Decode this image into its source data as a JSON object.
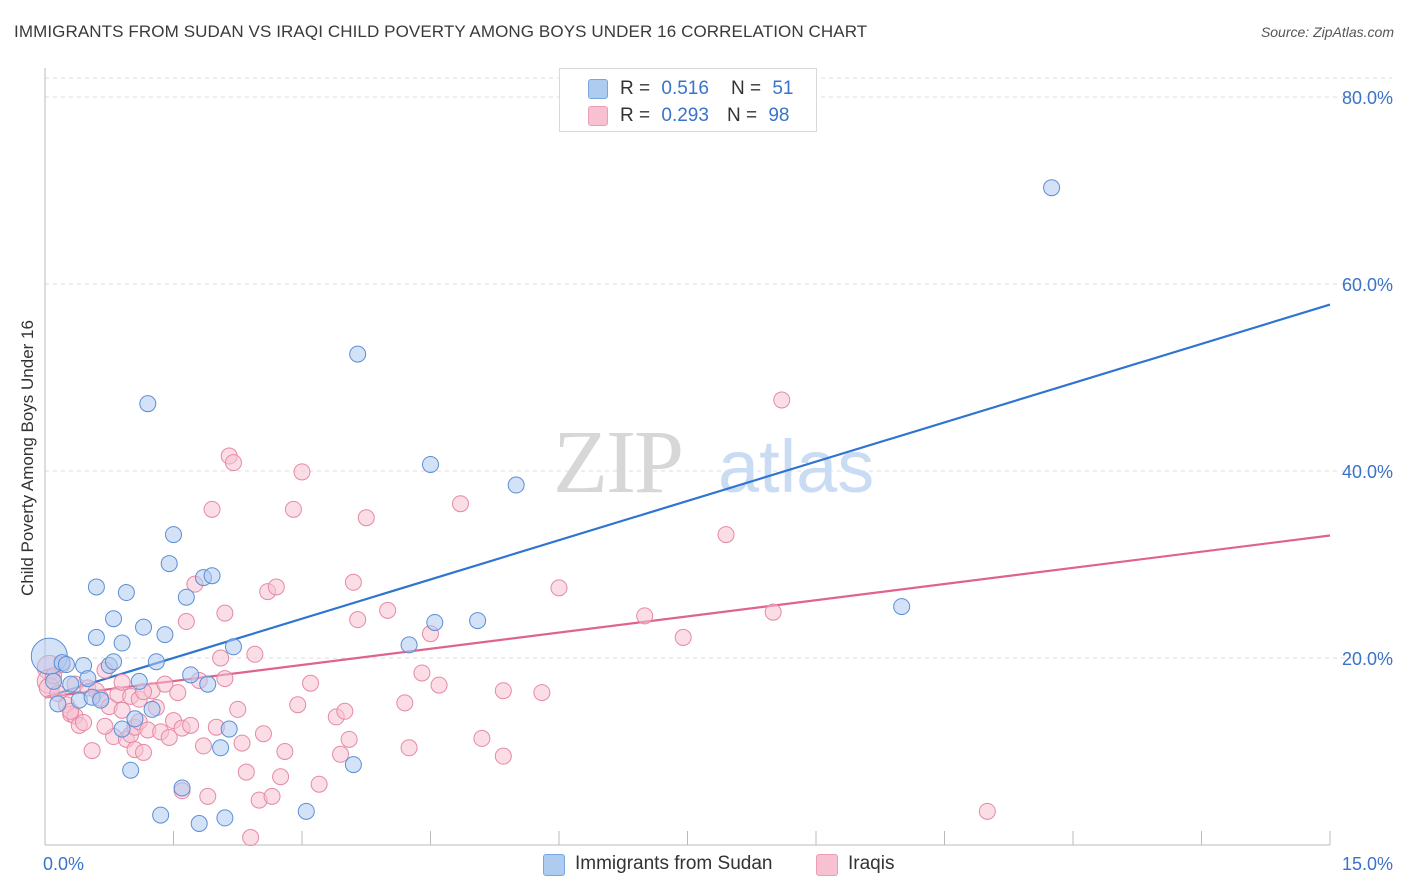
{
  "title": "IMMIGRANTS FROM SUDAN VS IRAQI CHILD POVERTY AMONG BOYS UNDER 16 CORRELATION CHART",
  "source": "Source: ZipAtlas.com",
  "watermark": {
    "zip": "ZIP",
    "atlas": "atlas"
  },
  "legend": {
    "rows": [
      {
        "r_label": "R =",
        "r_value": "0.516",
        "n_label": "N =",
        "n_value": "51",
        "color": "#aecbf0"
      },
      {
        "r_label": "R =",
        "r_value": "0.293",
        "n_label": "N =",
        "n_value": "98",
        "color": "#f7c1d1"
      }
    ]
  },
  "bottom_legend": {
    "series1": "Immigrants from Sudan",
    "series2": "Iraqis"
  },
  "colors": {
    "blue_fill": "#aecbf0",
    "blue_stroke": "#5b8fd6",
    "blue_line": "#2f74d0",
    "pink_fill": "#f7c1d1",
    "pink_stroke": "#e58aa6",
    "pink_line": "#e0628e",
    "grid": "#dddddd",
    "axis_text": "#3a73c9"
  },
  "chart_data": {
    "type": "scatter",
    "title": "IMMIGRANTS FROM SUDAN VS IRAQI CHILD POVERTY AMONG BOYS UNDER 16 CORRELATION CHART",
    "xlabel": "",
    "ylabel": "Child Poverty Among Boys Under 16",
    "xlim": [
      0,
      15
    ],
    "ylim": [
      0,
      80
    ],
    "x_tick_labels": [
      "0.0%",
      "15.0%"
    ],
    "y_ticks": [
      20,
      40,
      60,
      80
    ],
    "y_tick_labels": [
      "20.0%",
      "40.0%",
      "60.0%",
      "80.0%"
    ],
    "grid": true,
    "legend_position": "top-center",
    "series": [
      {
        "name": "Immigrants from Sudan",
        "color": "#aecbf0",
        "trend": {
          "x": [
            0,
            15
          ],
          "y": [
            15.8,
            57.8
          ]
        },
        "points": [
          [
            0.05,
            20.2,
            18
          ],
          [
            0.1,
            17.5,
            8
          ],
          [
            0.15,
            15.1,
            8
          ],
          [
            0.2,
            19.5,
            8
          ],
          [
            0.3,
            17.2,
            8
          ],
          [
            0.4,
            15.5,
            8
          ],
          [
            0.45,
            19.2,
            8
          ],
          [
            0.5,
            17.8,
            8
          ],
          [
            0.55,
            15.8,
            8
          ],
          [
            0.6,
            27.6,
            8
          ],
          [
            0.6,
            22.2,
            8
          ],
          [
            0.65,
            15.5,
            8
          ],
          [
            0.75,
            19.2,
            8
          ],
          [
            0.8,
            19.6,
            8
          ],
          [
            0.8,
            24.2,
            8
          ],
          [
            0.9,
            12.4,
            8
          ],
          [
            0.9,
            21.6,
            8
          ],
          [
            0.95,
            27.0,
            8
          ],
          [
            1.0,
            8.0,
            8
          ],
          [
            1.05,
            13.5,
            8
          ],
          [
            1.1,
            17.5,
            8
          ],
          [
            1.15,
            23.3,
            8
          ],
          [
            1.2,
            47.2,
            8
          ],
          [
            1.25,
            14.5,
            8
          ],
          [
            1.3,
            19.6,
            8
          ],
          [
            1.35,
            3.2,
            8
          ],
          [
            1.4,
            22.5,
            8
          ],
          [
            1.45,
            30.1,
            8
          ],
          [
            1.5,
            33.2,
            8
          ],
          [
            1.6,
            6.1,
            8
          ],
          [
            1.65,
            26.5,
            8
          ],
          [
            1.7,
            18.2,
            8
          ],
          [
            1.8,
            2.3,
            8
          ],
          [
            1.85,
            28.6,
            8
          ],
          [
            1.9,
            17.2,
            8
          ],
          [
            1.95,
            28.8,
            8
          ],
          [
            2.05,
            10.4,
            8
          ],
          [
            2.1,
            2.9,
            8
          ],
          [
            2.15,
            12.4,
            8
          ],
          [
            2.2,
            21.2,
            8
          ],
          [
            3.05,
            3.6,
            8
          ],
          [
            3.6,
            8.6,
            8
          ],
          [
            3.65,
            52.5,
            8
          ],
          [
            4.25,
            21.4,
            8
          ],
          [
            4.5,
            40.7,
            8
          ],
          [
            4.55,
            23.8,
            8
          ],
          [
            5.05,
            24.0,
            8
          ],
          [
            5.5,
            38.5,
            8
          ],
          [
            10.0,
            25.5,
            8
          ],
          [
            11.75,
            70.3,
            8
          ],
          [
            0.25,
            19.3,
            8
          ]
        ]
      },
      {
        "name": "Iraqis",
        "color": "#f7c1d1",
        "trend": {
          "x": [
            0,
            15
          ],
          "y": [
            15.8,
            33.1
          ]
        },
        "points": [
          [
            0.05,
            19.0,
            12
          ],
          [
            0.05,
            17.5,
            12
          ],
          [
            0.05,
            16.8,
            10
          ],
          [
            0.1,
            18.1,
            8
          ],
          [
            0.15,
            16.2,
            8
          ],
          [
            0.2,
            19.3,
            8
          ],
          [
            0.25,
            15.0,
            8
          ],
          [
            0.3,
            14.0,
            8
          ],
          [
            0.35,
            13.8,
            8
          ],
          [
            0.35,
            17.2,
            8
          ],
          [
            0.4,
            12.8,
            8
          ],
          [
            0.45,
            13.1,
            8
          ],
          [
            0.5,
            16.8,
            8
          ],
          [
            0.55,
            10.1,
            8
          ],
          [
            0.6,
            16.5,
            8
          ],
          [
            0.65,
            15.7,
            8
          ],
          [
            0.7,
            18.7,
            8
          ],
          [
            0.75,
            14.8,
            8
          ],
          [
            0.8,
            11.6,
            8
          ],
          [
            0.85,
            16.1,
            8
          ],
          [
            0.9,
            17.4,
            8
          ],
          [
            0.9,
            14.4,
            8
          ],
          [
            0.95,
            11.3,
            8
          ],
          [
            1.0,
            15.9,
            8
          ],
          [
            1.0,
            11.8,
            8
          ],
          [
            1.05,
            12.6,
            8
          ],
          [
            1.05,
            10.2,
            8
          ],
          [
            1.1,
            15.6,
            8
          ],
          [
            1.1,
            13.2,
            8
          ],
          [
            1.15,
            9.9,
            8
          ],
          [
            1.2,
            12.3,
            8
          ],
          [
            1.25,
            16.5,
            8
          ],
          [
            1.3,
            14.7,
            8
          ],
          [
            1.35,
            12.1,
            8
          ],
          [
            1.4,
            17.2,
            8
          ],
          [
            1.45,
            11.5,
            8
          ],
          [
            1.5,
            13.3,
            8
          ],
          [
            1.55,
            16.3,
            8
          ],
          [
            1.6,
            12.5,
            8
          ],
          [
            1.65,
            23.9,
            8
          ],
          [
            1.7,
            12.8,
            8
          ],
          [
            1.75,
            27.9,
            8
          ],
          [
            1.8,
            17.6,
            8
          ],
          [
            1.85,
            10.6,
            8
          ],
          [
            1.9,
            5.2,
            8
          ],
          [
            1.95,
            35.9,
            8
          ],
          [
            2.0,
            12.6,
            8
          ],
          [
            2.05,
            20.0,
            8
          ],
          [
            2.1,
            24.8,
            8
          ],
          [
            2.15,
            41.6,
            8
          ],
          [
            2.2,
            40.9,
            8
          ],
          [
            2.25,
            14.5,
            8
          ],
          [
            2.3,
            10.9,
            8
          ],
          [
            2.35,
            7.8,
            8
          ],
          [
            2.4,
            0.8,
            8
          ],
          [
            2.45,
            20.4,
            8
          ],
          [
            2.5,
            4.8,
            8
          ],
          [
            2.55,
            11.9,
            8
          ],
          [
            2.6,
            27.1,
            8
          ],
          [
            2.65,
            5.2,
            8
          ],
          [
            2.7,
            27.6,
            8
          ],
          [
            2.75,
            7.3,
            8
          ],
          [
            2.8,
            10.0,
            8
          ],
          [
            2.9,
            35.9,
            8
          ],
          [
            2.95,
            15.0,
            8
          ],
          [
            3.0,
            39.9,
            8
          ],
          [
            3.2,
            6.5,
            8
          ],
          [
            3.4,
            13.7,
            8
          ],
          [
            3.45,
            9.7,
            8
          ],
          [
            3.5,
            14.3,
            8
          ],
          [
            3.55,
            11.3,
            8
          ],
          [
            3.6,
            28.1,
            8
          ],
          [
            3.65,
            24.1,
            8
          ],
          [
            3.75,
            35.0,
            8
          ],
          [
            4.0,
            25.1,
            8
          ],
          [
            4.2,
            15.2,
            8
          ],
          [
            4.25,
            10.4,
            8
          ],
          [
            4.4,
            18.4,
            8
          ],
          [
            4.5,
            22.6,
            8
          ],
          [
            4.6,
            17.1,
            8
          ],
          [
            4.85,
            36.5,
            8
          ],
          [
            5.1,
            11.4,
            8
          ],
          [
            5.35,
            16.5,
            8
          ],
          [
            5.35,
            9.5,
            8
          ],
          [
            5.8,
            16.3,
            8
          ],
          [
            6.0,
            27.5,
            8
          ],
          [
            7.0,
            24.5,
            8
          ],
          [
            7.45,
            22.2,
            8
          ],
          [
            7.95,
            33.2,
            8
          ],
          [
            8.5,
            24.9,
            8
          ],
          [
            8.6,
            47.6,
            8
          ],
          [
            11.0,
            3.6,
            8
          ],
          [
            0.3,
            14.3,
            8
          ],
          [
            0.7,
            12.7,
            8
          ],
          [
            1.15,
            16.4,
            8
          ],
          [
            1.6,
            5.8,
            8
          ],
          [
            2.1,
            17.8,
            8
          ],
          [
            3.1,
            17.3,
            8
          ]
        ]
      }
    ]
  }
}
